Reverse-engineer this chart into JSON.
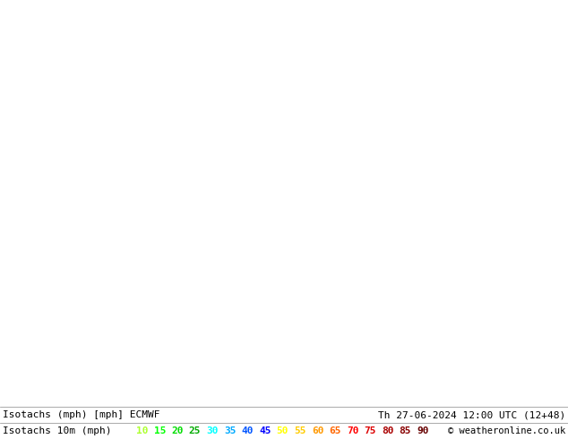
{
  "title_left": "Isotachs (mph) [mph] ECMWF",
  "title_right": "Th 27-06-2024 12:00 UTC (12+48)",
  "legend_label": "Isotachs 10m (mph)",
  "copyright": "© weatheronline.co.uk",
  "speed_values": [
    10,
    15,
    20,
    25,
    30,
    35,
    40,
    45,
    50,
    55,
    60,
    65,
    70,
    75,
    80,
    85,
    90
  ],
  "speed_colors": [
    "#adff2f",
    "#00ff00",
    "#00dd00",
    "#00aa00",
    "#00ffff",
    "#00aaff",
    "#0055ff",
    "#0000ff",
    "#ffff00",
    "#ffcc00",
    "#ff9900",
    "#ff6600",
    "#ff0000",
    "#dd0000",
    "#aa0000",
    "#880000",
    "#660000"
  ],
  "fig_width": 6.34,
  "fig_height": 4.9,
  "dpi": 100,
  "text_color": "#000000",
  "bar_bg": "#ffffff",
  "map_bg": "#e8e8dc",
  "legend_fontsize": 8,
  "title_fontsize": 8
}
